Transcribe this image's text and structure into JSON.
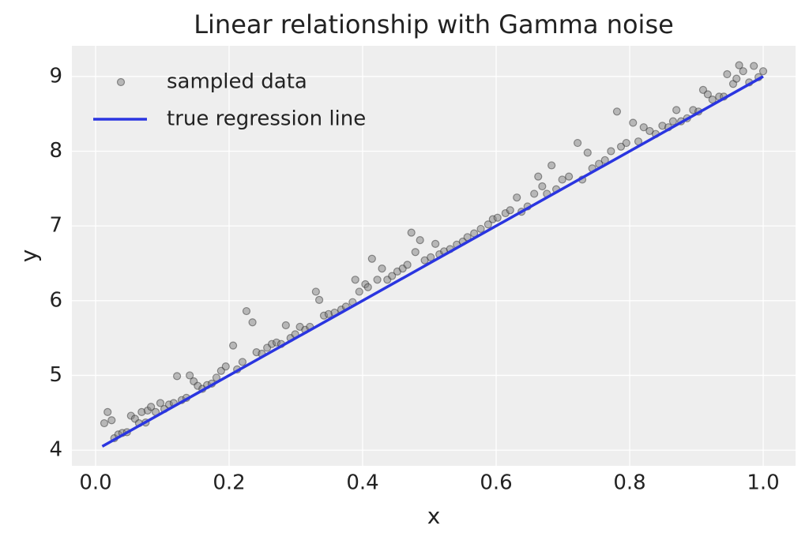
{
  "chart_data": {
    "type": "scatter",
    "title": "Linear relationship with Gamma noise",
    "xlabel": "x",
    "ylabel": "y",
    "xlim": [
      -0.0355,
      1.0485
    ],
    "ylim": [
      3.79,
      9.41
    ],
    "xticks": [
      {
        "value": 0,
        "label": "0.0"
      },
      0.2,
      0.4,
      0.6,
      0.8,
      {
        "value": 1,
        "label": "1.0"
      }
    ],
    "yticks": [
      4,
      5,
      6,
      7,
      8,
      9
    ],
    "grid": true,
    "legend": "upper left",
    "series": [
      {
        "name": "sampled data",
        "type": "scatter",
        "color": "#808080",
        "x": [
          0.013,
          0.018,
          0.024,
          0.028,
          0.034,
          0.04,
          0.047,
          0.053,
          0.059,
          0.065,
          0.069,
          0.075,
          0.078,
          0.083,
          0.09,
          0.097,
          0.103,
          0.11,
          0.117,
          0.122,
          0.129,
          0.136,
          0.141,
          0.147,
          0.153,
          0.16,
          0.167,
          0.174,
          0.181,
          0.188,
          0.195,
          0.206,
          0.212,
          0.22,
          0.226,
          0.235,
          0.241,
          0.249,
          0.257,
          0.264,
          0.271,
          0.278,
          0.285,
          0.292,
          0.299,
          0.306,
          0.314,
          0.321,
          0.33,
          0.335,
          0.342,
          0.349,
          0.358,
          0.368,
          0.375,
          0.385,
          0.389,
          0.395,
          0.404,
          0.408,
          0.414,
          0.422,
          0.429,
          0.437,
          0.444,
          0.452,
          0.46,
          0.467,
          0.473,
          0.479,
          0.486,
          0.493,
          0.502,
          0.509,
          0.515,
          0.522,
          0.531,
          0.541,
          0.55,
          0.557,
          0.567,
          0.577,
          0.588,
          0.595,
          0.602,
          0.614,
          0.621,
          0.631,
          0.638,
          0.647,
          0.657,
          0.663,
          0.669,
          0.676,
          0.683,
          0.69,
          0.699,
          0.709,
          0.722,
          0.729,
          0.737,
          0.744,
          0.754,
          0.763,
          0.772,
          0.781,
          0.787,
          0.795,
          0.805,
          0.813,
          0.821,
          0.83,
          0.839,
          0.849,
          0.858,
          0.865,
          0.87,
          0.877,
          0.886,
          0.895,
          0.903,
          0.91,
          0.917,
          0.924,
          0.934,
          0.941,
          0.946,
          0.955,
          0.96,
          0.964,
          0.97,
          0.979,
          0.986,
          0.993,
          1.0
        ],
        "values": [
          4.36,
          4.51,
          4.4,
          4.16,
          4.21,
          4.23,
          4.24,
          4.46,
          4.42,
          4.36,
          4.51,
          4.37,
          4.53,
          4.58,
          4.51,
          4.63,
          4.55,
          4.61,
          4.63,
          4.99,
          4.67,
          4.7,
          5.0,
          4.92,
          4.86,
          4.82,
          4.87,
          4.89,
          4.97,
          5.06,
          5.12,
          5.4,
          5.08,
          5.18,
          5.86,
          5.71,
          5.31,
          5.29,
          5.37,
          5.42,
          5.44,
          5.42,
          5.67,
          5.5,
          5.55,
          5.65,
          5.61,
          5.65,
          6.12,
          6.01,
          5.8,
          5.82,
          5.84,
          5.88,
          5.92,
          5.98,
          6.28,
          6.12,
          6.22,
          6.18,
          6.56,
          6.28,
          6.43,
          6.28,
          6.33,
          6.39,
          6.43,
          6.48,
          6.91,
          6.65,
          6.81,
          6.54,
          6.58,
          6.76,
          6.62,
          6.66,
          6.69,
          6.75,
          6.79,
          6.85,
          6.9,
          6.96,
          7.02,
          7.09,
          7.11,
          7.17,
          7.21,
          7.38,
          7.19,
          7.26,
          7.43,
          7.66,
          7.53,
          7.43,
          7.81,
          7.49,
          7.62,
          7.66,
          8.11,
          7.62,
          7.98,
          7.77,
          7.83,
          7.88,
          8.0,
          8.53,
          8.06,
          8.11,
          8.38,
          8.13,
          8.32,
          8.27,
          8.23,
          8.34,
          8.32,
          8.4,
          8.55,
          8.4,
          8.44,
          8.55,
          8.53,
          8.82,
          8.76,
          8.69,
          8.73,
          8.73,
          9.03,
          8.9,
          8.97,
          9.15,
          9.07,
          8.92,
          9.14,
          8.99,
          9.07
        ]
      },
      {
        "name": "true regression line",
        "type": "line",
        "color": "#2a35e0",
        "x": [
          0.01,
          1.0
        ],
        "values": [
          4.05,
          9.0
        ]
      }
    ]
  }
}
